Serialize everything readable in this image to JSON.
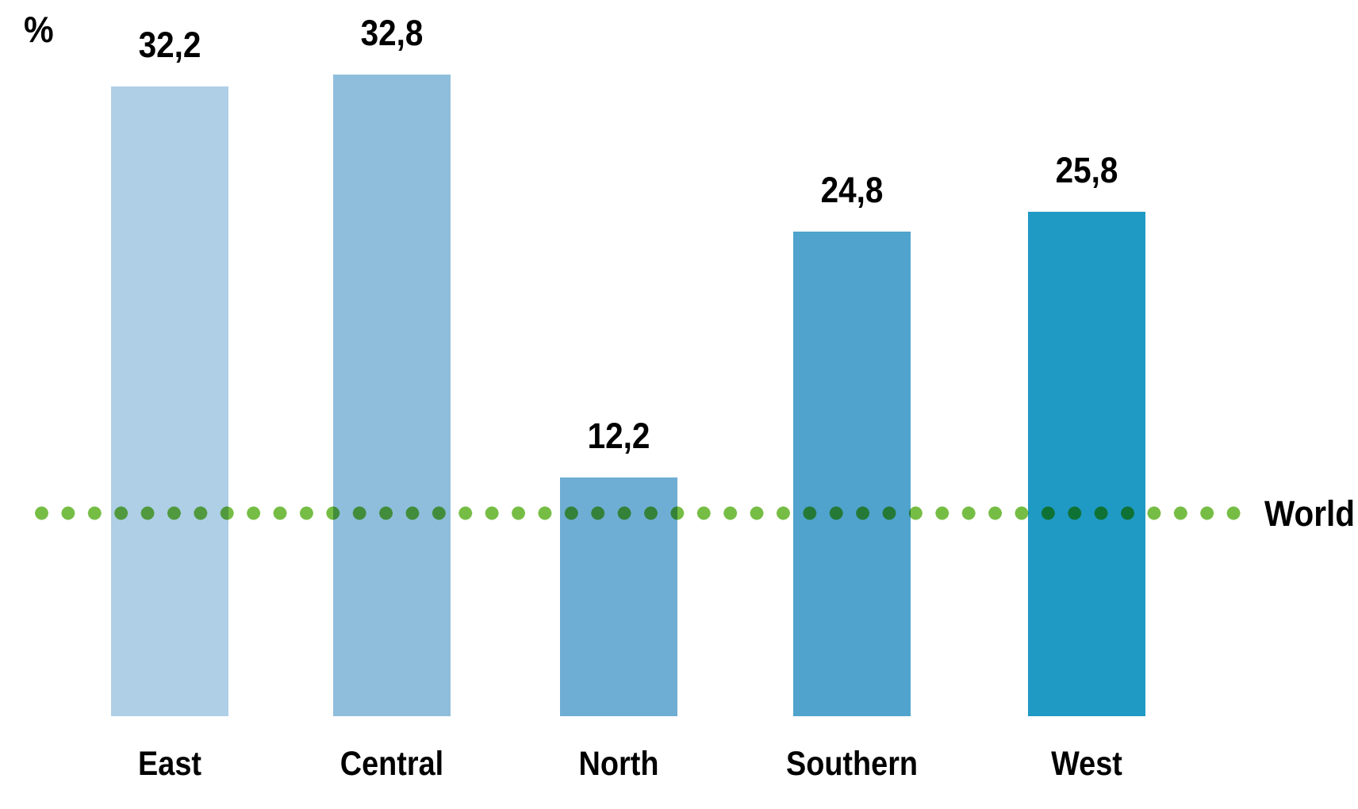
{
  "chart_data": {
    "type": "bar",
    "title": "",
    "ylabel": "%",
    "xlabel": "",
    "categories": [
      "East",
      "Central",
      "North",
      "Southern",
      "West"
    ],
    "values": [
      32.2,
      32.8,
      12.2,
      24.8,
      25.8
    ],
    "value_labels": [
      "32,2",
      "32,8",
      "12,2",
      "24,8",
      "25,8"
    ],
    "bar_colors": [
      "#AECFE6",
      "#8FBEDD",
      "#6FAED4",
      "#4FA3CC",
      "#1F9AC4"
    ],
    "reference_line": {
      "label": "World",
      "value": 10.4,
      "color": "#76BD45",
      "style": "dotted"
    },
    "ylim": [
      0,
      33.5
    ],
    "grid": false,
    "legend": "none",
    "decimal_separator": ","
  }
}
